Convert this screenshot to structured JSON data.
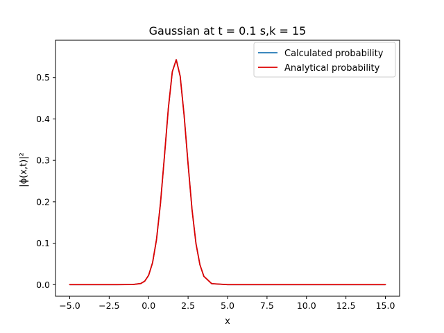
{
  "chart_data": {
    "type": "line",
    "title": "Gaussian at t = 0.1 s,k = 15",
    "xlabel": "x",
    "ylabel": "|ϕ(x,t)|²",
    "xlim": [
      -5.9,
      15.9
    ],
    "ylim": [
      -0.028,
      0.59
    ],
    "x_ticks": [
      -5.0,
      -2.5,
      0.0,
      2.5,
      5.0,
      7.5,
      10.0,
      12.5,
      15.0
    ],
    "x_tick_labels": [
      "−5.0",
      "−2.5",
      "0.0",
      "2.5",
      "5.0",
      "7.5",
      "10.0",
      "12.5",
      "15.0"
    ],
    "y_ticks": [
      0.0,
      0.1,
      0.2,
      0.3,
      0.4,
      0.5
    ],
    "y_tick_labels": [
      "0.0",
      "0.1",
      "0.2",
      "0.3",
      "0.4",
      "0.5"
    ],
    "grid": false,
    "legend_position": "top-right",
    "series": [
      {
        "name": "Calculated probability",
        "color": "#1f77b4",
        "x": [
          -5.0,
          -2.0,
          -1.0,
          -0.5,
          -0.25,
          0.0,
          0.25,
          0.5,
          0.75,
          1.0,
          1.25,
          1.5,
          1.75,
          2.0,
          2.25,
          2.5,
          2.75,
          3.0,
          3.25,
          3.5,
          4.0,
          5.0,
          10.0,
          15.0
        ],
        "y": [
          0.0,
          0.0,
          0.0003,
          0.0027,
          0.0083,
          0.0224,
          0.053,
          0.109,
          0.196,
          0.309,
          0.426,
          0.514,
          0.543,
          0.503,
          0.408,
          0.291,
          0.181,
          0.099,
          0.048,
          0.02,
          0.0023,
          0.0,
          0.0,
          0.0
        ]
      },
      {
        "name": "Analytical probability",
        "color": "#dd0000",
        "x": [
          -5.0,
          -2.0,
          -1.0,
          -0.5,
          -0.25,
          0.0,
          0.25,
          0.5,
          0.75,
          1.0,
          1.25,
          1.5,
          1.75,
          2.0,
          2.25,
          2.5,
          2.75,
          3.0,
          3.25,
          3.5,
          4.0,
          5.0,
          10.0,
          15.0
        ],
        "y": [
          0.0,
          0.0,
          0.0003,
          0.0027,
          0.0083,
          0.0224,
          0.053,
          0.109,
          0.196,
          0.309,
          0.426,
          0.514,
          0.543,
          0.503,
          0.408,
          0.291,
          0.181,
          0.099,
          0.048,
          0.02,
          0.0023,
          0.0,
          0.0,
          0.0
        ]
      }
    ]
  }
}
